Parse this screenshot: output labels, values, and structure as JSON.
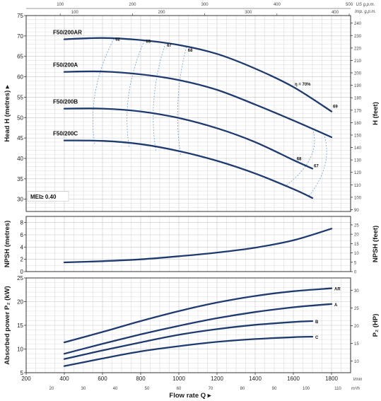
{
  "chart_data": [
    {
      "type": "line",
      "ylabel_left": "Head H (metres)",
      "ylabel_right": "H (feet)",
      "ylim": [
        27,
        75
      ],
      "yticks": [
        30,
        35,
        40,
        45,
        50,
        55,
        60,
        65,
        70,
        75
      ],
      "ylim_right_ft": [
        88.6,
        246.1
      ],
      "yticks_right": [
        90,
        100,
        110,
        120,
        130,
        140,
        150,
        160,
        170,
        180,
        190,
        200,
        210,
        220,
        230,
        240
      ],
      "mei_label": "MEI≥ 0.40",
      "series": [
        {
          "name": "F50/200AR",
          "x": [
            400,
            600,
            800,
            1000,
            1200,
            1400,
            1600,
            1800
          ],
          "y": [
            69.2,
            69.5,
            69.0,
            67.8,
            65.6,
            62.0,
            57.5,
            51.5
          ]
        },
        {
          "name": "F50/200A",
          "x": [
            400,
            600,
            800,
            1000,
            1200,
            1400,
            1600,
            1800
          ],
          "y": [
            61.2,
            61.3,
            60.6,
            59.2,
            56.8,
            53.2,
            49.3,
            45.2
          ]
        },
        {
          "name": "F50/200B",
          "x": [
            400,
            600,
            800,
            1000,
            1200,
            1400,
            1600,
            1700
          ],
          "y": [
            52.2,
            52.2,
            51.5,
            49.9,
            47.4,
            44.0,
            39.6,
            37.5
          ]
        },
        {
          "name": "F50/200C",
          "x": [
            400,
            600,
            800,
            1000,
            1200,
            1400,
            1600,
            1700
          ],
          "y": [
            44.4,
            44.3,
            43.5,
            41.8,
            39.4,
            36.3,
            32.5,
            30.3
          ]
        }
      ],
      "efficiency_labels": [
        {
          "text": "62",
          "x": 660,
          "y": 68.5
        },
        {
          "text": "65",
          "x": 820,
          "y": 68.0
        },
        {
          "text": "67",
          "x": 930,
          "y": 67.0
        },
        {
          "text": "68",
          "x": 1040,
          "y": 65.8
        },
        {
          "text": "η = 70%",
          "x": 1600,
          "y": 57.5
        },
        {
          "text": "69",
          "x": 1800,
          "y": 52.0
        },
        {
          "text": "68",
          "x": 1610,
          "y": 39.2
        },
        {
          "text": "67",
          "x": 1700,
          "y": 37.5
        }
      ]
    },
    {
      "type": "line",
      "ylabel_left": "NPSH (metres)",
      "ylabel_right": "NPSH (feet)",
      "ylim": [
        0,
        9
      ],
      "yticks": [
        0,
        2,
        4,
        6,
        8
      ],
      "yticks_right": [
        0,
        5,
        10,
        15,
        20,
        25
      ],
      "series": [
        {
          "name": "NPSH",
          "x": [
            400,
            600,
            800,
            1000,
            1200,
            1400,
            1600,
            1800
          ],
          "y": [
            1.5,
            1.7,
            2.0,
            2.5,
            3.1,
            3.9,
            5.1,
            7.0
          ]
        }
      ]
    },
    {
      "type": "line",
      "ylabel_left": "Absorbed power P₂ (kW)",
      "ylabel_right": "P₂ (HP)",
      "ylim": [
        5,
        25
      ],
      "yticks": [
        5,
        10,
        15,
        20,
        25
      ],
      "yticks_right": [
        10,
        15,
        20,
        25,
        30
      ],
      "series": [
        {
          "name": "AR",
          "x": [
            400,
            600,
            800,
            1000,
            1200,
            1400,
            1600,
            1800
          ],
          "y": [
            11.4,
            13.6,
            15.9,
            18.0,
            19.8,
            21.2,
            22.2,
            22.8
          ]
        },
        {
          "name": "A",
          "x": [
            400,
            600,
            800,
            1000,
            1200,
            1400,
            1600,
            1800
          ],
          "y": [
            9.0,
            11.1,
            13.1,
            14.9,
            16.5,
            17.8,
            18.8,
            19.5
          ]
        },
        {
          "name": "B",
          "x": [
            400,
            600,
            800,
            1000,
            1200,
            1400,
            1600,
            1700
          ],
          "y": [
            7.9,
            9.7,
            11.4,
            13.0,
            14.2,
            15.1,
            15.7,
            15.9
          ]
        },
        {
          "name": "C",
          "x": [
            400,
            600,
            800,
            1000,
            1200,
            1400,
            1600,
            1700
          ],
          "y": [
            6.4,
            8.0,
            9.5,
            10.6,
            11.5,
            12.1,
            12.5,
            12.6
          ]
        }
      ]
    }
  ],
  "x_axis": {
    "label": "Flow rate  Q",
    "unit": "l/min",
    "range": [
      200,
      1900
    ],
    "ticks": [
      "200",
      "400",
      "600",
      "800",
      "1000",
      "1200",
      "1400",
      "1600",
      "1800"
    ],
    "m3h_unit": "m³/h",
    "m3h_ticks": [
      "20",
      "30",
      "40",
      "50",
      "60",
      "70",
      "80",
      "90",
      "100",
      "110"
    ],
    "us_unit": "US g.p.m.",
    "us_ticks": [
      "100",
      "200",
      "300",
      "400",
      "500"
    ],
    "imp_unit": "Imp. g.p.m.",
    "imp_ticks": [
      "100",
      "200",
      "300",
      "400"
    ]
  },
  "colors": {
    "curve": "#1f3a6e",
    "efficiency": "#6fa0cc",
    "grid": "#c4c4c4",
    "frame": "#333333"
  }
}
